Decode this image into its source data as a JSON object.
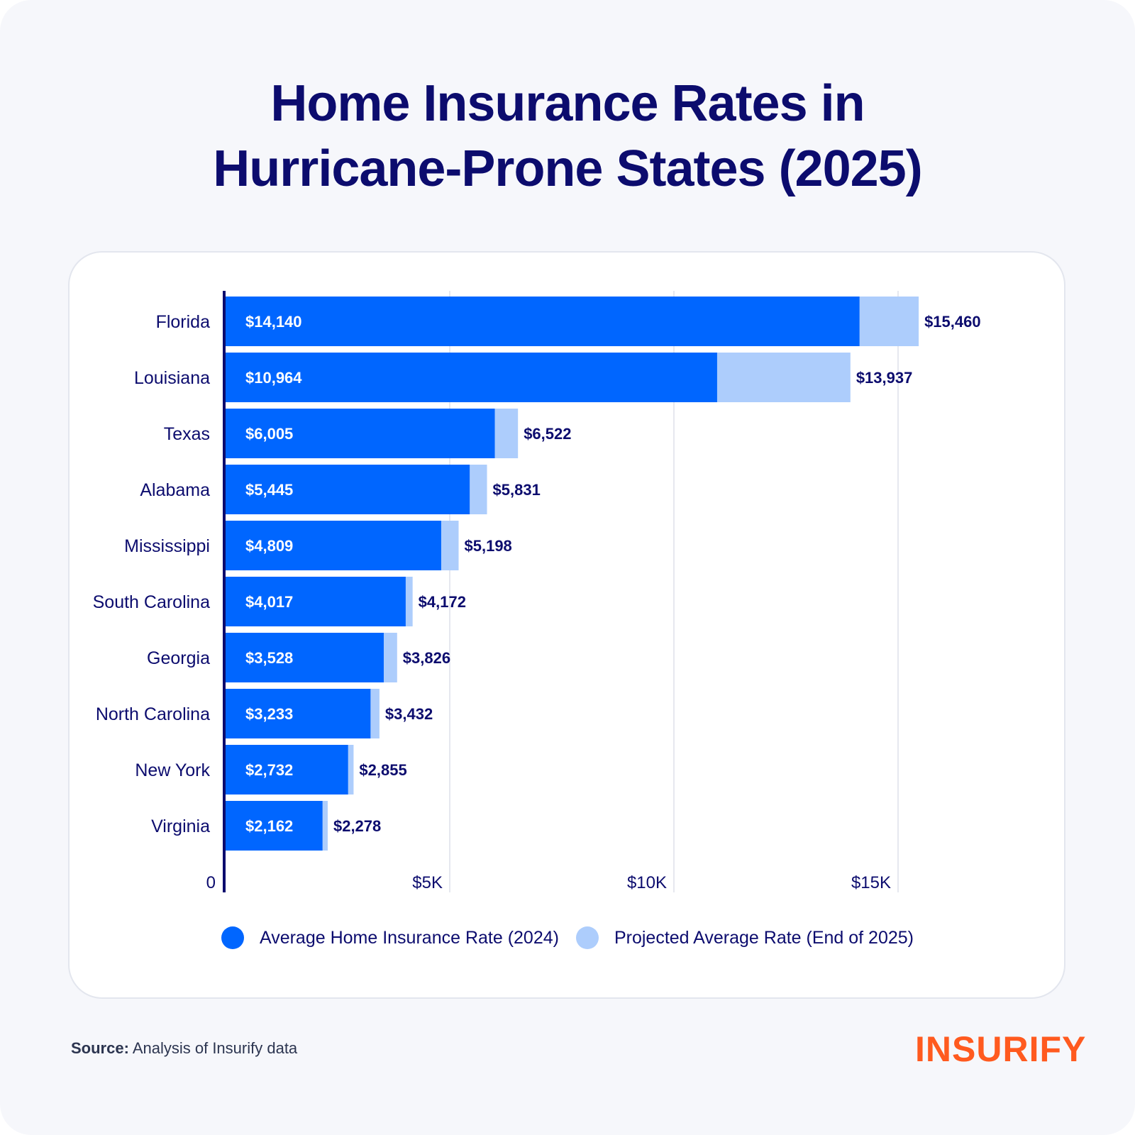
{
  "title": {
    "line1": "Home Insurance Rates in",
    "line2": "Hurricane-Prone States (2025)"
  },
  "colors": {
    "background": "#f6f7fb",
    "card": "#ffffff",
    "title": "#0c0c6e",
    "series_2024": "#0066ff",
    "series_2025": "#adcdfc",
    "axis": "#0c0c6e",
    "grid": "#e6e8ef",
    "brand": "#ff5a1f"
  },
  "chart_data": {
    "type": "bar",
    "orientation": "horizontal",
    "stacked_overlay": true,
    "title": "Home Insurance Rates in Hurricane-Prone States (2025)",
    "xlabel": "",
    "ylabel": "",
    "categories": [
      "Florida",
      "Louisiana",
      "Texas",
      "Alabama",
      "Mississippi",
      "South Carolina",
      "Georgia",
      "North Carolina",
      "New York",
      "Virginia"
    ],
    "series": [
      {
        "name": "Average Home Insurance Rate (2024)",
        "values": [
          14140,
          10964,
          6005,
          5445,
          4809,
          4017,
          3528,
          3233,
          2732,
          2162
        ],
        "labels": [
          "$14,140",
          "$10,964",
          "$6,005",
          "$5,445",
          "$4,809",
          "$4,017",
          "$3,528",
          "$3,233",
          "$2,732",
          "$2,162"
        ]
      },
      {
        "name": "Projected Average Rate (End of 2025)",
        "values": [
          15460,
          13937,
          6522,
          5831,
          5198,
          4172,
          3826,
          3432,
          2855,
          2278
        ],
        "labels": [
          "$15,460",
          "$13,937",
          "$6,522",
          "$5,831",
          "$5,198",
          "$4,172",
          "$3,826",
          "$3,432",
          "$2,855",
          "$2,278"
        ]
      }
    ],
    "xlim": [
      0,
      16500
    ],
    "xticks": [
      0,
      5000,
      10000,
      15000
    ],
    "xtick_labels": [
      "0",
      "$5K",
      "$10K",
      "$15K"
    ],
    "grid": true,
    "legend_position": "bottom"
  },
  "legend": [
    {
      "label": "Average Home Insurance Rate (2024)"
    },
    {
      "label": "Projected Average Rate (End of 2025)"
    }
  ],
  "source": {
    "label": "Source:",
    "text": "Analysis of Insurify data"
  },
  "brand": {
    "name": "INSURIFY"
  }
}
